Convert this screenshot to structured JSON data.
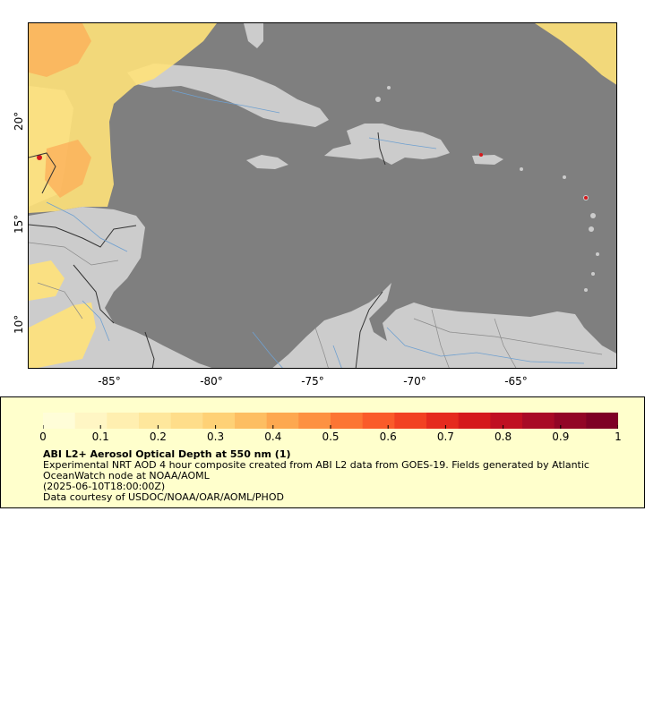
{
  "map": {
    "y_ticks": [
      "20°",
      "15°",
      "10°"
    ],
    "x_ticks": [
      "-85°",
      "-80°",
      "-75°",
      "-70°",
      "-65°"
    ],
    "colors": {
      "ocean": "#7f7f7f",
      "land": "#cccccc",
      "border": "#333333",
      "subborder": "#8a8a8a",
      "river": "#6fa0d0",
      "aod_low": "#ffe27a",
      "aod_mid": "#fcae58",
      "aod_high": "#d5191c"
    },
    "y_range_deg": [
      8,
      25
    ],
    "x_range_deg": [
      -88.5,
      -59.5
    ]
  },
  "legend": {
    "tick_labels": [
      "0",
      "0.1",
      "0.2",
      "0.3",
      "0.4",
      "0.5",
      "0.6",
      "0.7",
      "0.8",
      "0.9",
      "1"
    ],
    "colormap": [
      "#fffdd8",
      "#fff6c4",
      "#ffefb0",
      "#fee79c",
      "#fedd8a",
      "#fed176",
      "#fdbe62",
      "#fda850",
      "#fd9142",
      "#fc7534",
      "#fa5b2a",
      "#f24122",
      "#e52a1e",
      "#d5191c",
      "#c00f22",
      "#a80a26",
      "#920526",
      "#7e0025"
    ],
    "title": "ABI L2+ Aerosol Optical Depth at 550 nm (1)",
    "line1": "Experimental NRT AOD 4 hour composite created from ABI L2 data from GOES-19. Fields generated by Atlantic OceanWatch node at NOAA/AOML",
    "line2": "(2025-06-10T18:00:00Z)",
    "line3": "Data courtesy of USDOC/NOAA/OAR/AOML/PHOD"
  }
}
